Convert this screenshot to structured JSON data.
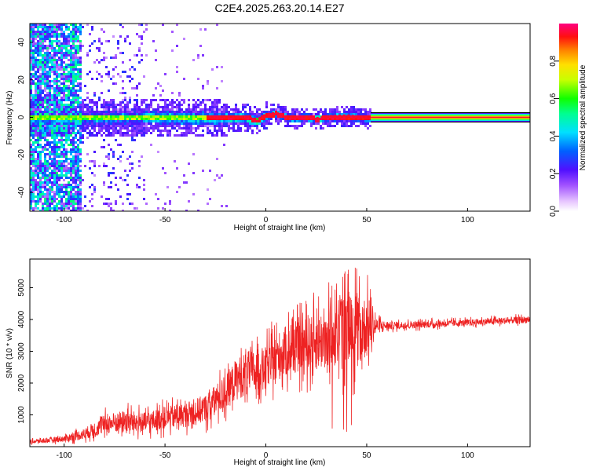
{
  "chart_data": [
    {
      "type": "heatmap",
      "title": "C2E4.2025.263.20.14.E27",
      "xlabel": "Height of straight line (km)",
      "ylabel": "Frequency (Hz)",
      "xlim": [
        -117,
        131
      ],
      "ylim": [
        -50,
        50
      ],
      "xticks": [
        -100,
        -50,
        0,
        50,
        100
      ],
      "yticks": [
        -40,
        -20,
        0,
        20,
        40
      ],
      "colorbar": {
        "label": "Normalized spectral amplitude",
        "range": [
          0,
          1
        ],
        "ticks": [
          "0.0",
          "0.2",
          "0.4",
          "0.6",
          "0.8"
        ]
      },
      "ridge_line": {
        "x": [
          -95,
          -80,
          -60,
          -40,
          -20,
          -10,
          -5,
          0,
          5,
          10,
          15,
          20,
          25,
          30,
          40,
          50,
          131
        ],
        "y": [
          0,
          0,
          0.5,
          0,
          0,
          0.5,
          -1.5,
          1.5,
          2.5,
          0.5,
          0,
          0.5,
          -0.5,
          0.5,
          1,
          0,
          0
        ]
      },
      "constant_band": {
        "x_start": 52,
        "x_end": 131,
        "frequency": 0
      }
    },
    {
      "type": "line",
      "title": "",
      "xlabel": "Height of straight line (km)",
      "ylabel": "SNR (10 * v/v)",
      "xlim": [
        -117,
        131
      ],
      "ylim": [
        0,
        5900
      ],
      "xticks": [
        -100,
        -50,
        0,
        50,
        100
      ],
      "yticks": [
        1000,
        2000,
        3000,
        4000,
        5000
      ],
      "color": "#ee2222",
      "envelope": {
        "x": [
          -117,
          -100,
          -90,
          -80,
          -70,
          -60,
          -50,
          -40,
          -30,
          -20,
          -15,
          -10,
          -5,
          0,
          5,
          10,
          15,
          20,
          25,
          30,
          35,
          40,
          45,
          50,
          55,
          60,
          80,
          100,
          131
        ],
        "mean": [
          150,
          250,
          400,
          700,
          800,
          750,
          900,
          1000,
          1200,
          1700,
          2100,
          2300,
          2400,
          2500,
          2800,
          3000,
          3100,
          3200,
          3300,
          3400,
          3500,
          3600,
          3700,
          3750,
          3800,
          3800,
          3850,
          3900,
          4000
        ],
        "range": [
          120,
          200,
          350,
          600,
          700,
          650,
          700,
          750,
          900,
          1100,
          1300,
          1400,
          1300,
          1300,
          1500,
          1600,
          1600,
          1700,
          1800,
          2000,
          2300,
          2400,
          2300,
          2000,
          500,
          250,
          220,
          200,
          220
        ]
      }
    }
  ]
}
